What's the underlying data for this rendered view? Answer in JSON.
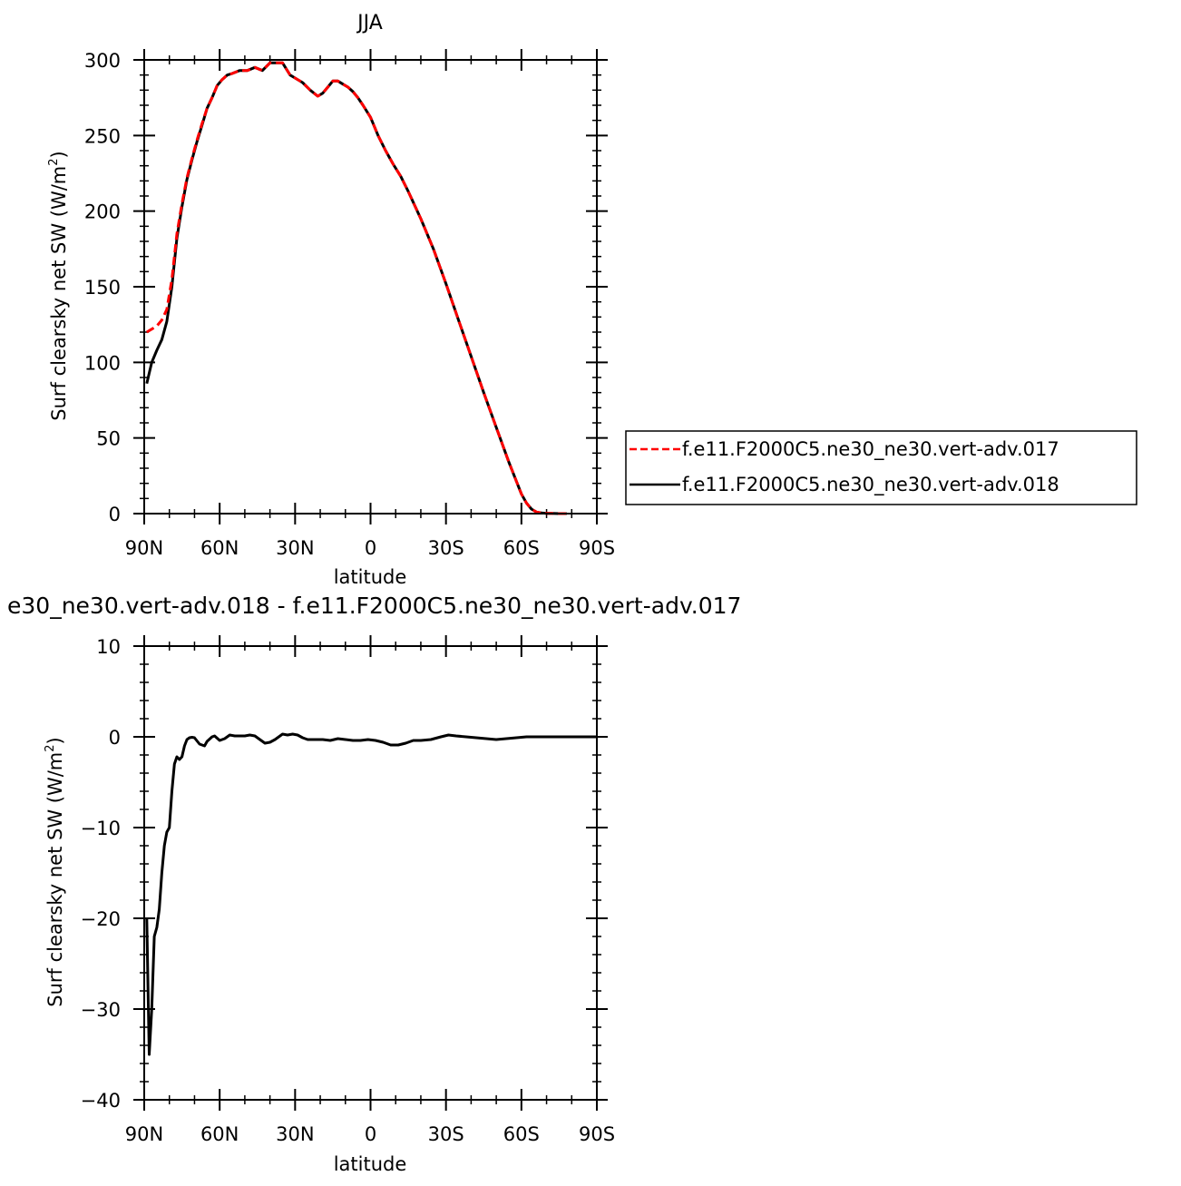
{
  "chart_data": [
    {
      "type": "line",
      "title": "JJA",
      "xlabel": "latitude",
      "ylabel_main": "Surf clearsky net SW (W/m",
      "ylabel_sup": "2",
      "ylabel_end": ")",
      "xlim": [
        90,
        -90
      ],
      "ylim": [
        0,
        300
      ],
      "x_ticks": [
        90,
        60,
        30,
        0,
        -30,
        -60,
        -90
      ],
      "x_tick_labels": [
        "90N",
        "60N",
        "30N",
        "0",
        "30S",
        "60S",
        "90S"
      ],
      "y_ticks": [
        0,
        50,
        100,
        150,
        200,
        250,
        300
      ],
      "y_tick_labels": [
        "0",
        "50",
        "100",
        "150",
        "200",
        "250",
        "300"
      ],
      "legend": "right",
      "series": [
        {
          "name": "f.e11.F2000C5.ne30_ne30.vert-adv.017",
          "color": "#ff0000",
          "dash": "dashed",
          "x": [
            89,
            87,
            85,
            83,
            81,
            79,
            77,
            75,
            73,
            71,
            69,
            67,
            65,
            63,
            61,
            59,
            57,
            55,
            52,
            49,
            46,
            43,
            40,
            38,
            35,
            32,
            30,
            27,
            24,
            21,
            19,
            17,
            15,
            13,
            11,
            9,
            7,
            5,
            3,
            0,
            -3,
            -6,
            -9,
            -12,
            -15,
            -20,
            -25,
            -30,
            -35,
            -40,
            -45,
            -50,
            -55,
            -60,
            -62,
            -64,
            -66,
            -68,
            -70,
            -72,
            -75,
            -78
          ],
          "y": [
            120,
            122,
            124,
            128,
            135,
            155,
            185,
            205,
            222,
            235,
            247,
            258,
            268,
            275,
            283,
            287,
            290,
            291,
            293,
            293,
            295,
            293,
            298,
            298,
            298,
            290,
            288,
            285,
            280,
            276,
            278,
            282,
            286,
            286,
            284,
            282,
            279,
            275,
            270,
            262,
            250,
            240,
            231,
            223,
            213,
            195,
            175,
            152,
            128,
            104,
            80,
            57,
            34,
            13,
            7,
            3,
            1,
            0.5,
            0.2,
            0.1,
            0,
            0
          ]
        },
        {
          "name": "f.e11.F2000C5.ne30_ne30.vert-adv.018",
          "color": "#000000",
          "dash": "solid",
          "x": [
            89,
            87,
            85,
            83,
            81,
            79,
            77,
            75,
            73,
            71,
            69,
            67,
            65,
            63,
            61,
            59,
            57,
            55,
            52,
            49,
            46,
            43,
            40,
            38,
            35,
            32,
            30,
            27,
            24,
            21,
            19,
            17,
            15,
            13,
            11,
            9,
            7,
            5,
            3,
            0,
            -3,
            -6,
            -9,
            -12,
            -15,
            -20,
            -25,
            -30,
            -35,
            -40,
            -45,
            -50,
            -55,
            -60,
            -62,
            -64,
            -66,
            -68,
            -70,
            -72,
            -75,
            -78
          ],
          "y": [
            86,
            100,
            108,
            115,
            127,
            150,
            182,
            203,
            221,
            234,
            246,
            257,
            268,
            275,
            283,
            287,
            290,
            291,
            293,
            293,
            295,
            293,
            298,
            298,
            298,
            290,
            288,
            285,
            280,
            276,
            278,
            282,
            286,
            286,
            284,
            282,
            279,
            275,
            270,
            262,
            250,
            240,
            231,
            223,
            213,
            195,
            175,
            152,
            128,
            104,
            80,
            57,
            34,
            13,
            7,
            3,
            1,
            0.5,
            0.2,
            0.1,
            0,
            0
          ]
        }
      ]
    },
    {
      "type": "line",
      "title": "e30_ne30.vert-adv.018 - f.e11.F2000C5.ne30_ne30.vert-adv.017",
      "xlabel": "latitude",
      "ylabel_main": "Surf clearsky net SW (W/m",
      "ylabel_sup": "2",
      "ylabel_end": ")",
      "xlim": [
        90,
        -90
      ],
      "ylim": [
        -40,
        10
      ],
      "x_ticks": [
        90,
        60,
        30,
        0,
        -30,
        -60,
        -90
      ],
      "x_tick_labels": [
        "90N",
        "60N",
        "30N",
        "0",
        "30S",
        "60S",
        "90S"
      ],
      "y_ticks": [
        -40,
        -30,
        -20,
        -10,
        0,
        10
      ],
      "y_tick_labels": [
        "−40",
        "−30",
        "−20",
        "−10",
        "0",
        "10"
      ],
      "series": [
        {
          "color": "#000000",
          "dash": "solid",
          "x": [
            89,
            88,
            87,
            86,
            85,
            84,
            83,
            82,
            81,
            80,
            79,
            78,
            77,
            76,
            75,
            74,
            73,
            72,
            71,
            70,
            68,
            66,
            65,
            63,
            62,
            60,
            58,
            56,
            54,
            52,
            50,
            48,
            46,
            44,
            42,
            40,
            38,
            35,
            33,
            31,
            29,
            27,
            25,
            22,
            19,
            16,
            13,
            10,
            7,
            4,
            1,
            -2,
            -5,
            -8,
            -11,
            -14,
            -17,
            -20,
            -24,
            -28,
            -31,
            -34,
            -38,
            -42,
            -46,
            -50,
            -54,
            -58,
            -62,
            -70,
            -80,
            -90
          ],
          "y": [
            -20,
            -35,
            -30,
            -22,
            -21,
            -19,
            -15,
            -12,
            -10.5,
            -10,
            -6,
            -3,
            -2.2,
            -2.5,
            -2.2,
            -1,
            -0.3,
            -0.1,
            -0.05,
            -0.1,
            -0.8,
            -1,
            -0.5,
            0,
            0.1,
            -0.4,
            -0.2,
            0.2,
            0.1,
            0.1,
            0.1,
            0.2,
            0.1,
            -0.3,
            -0.7,
            -0.6,
            -0.3,
            0.3,
            0.2,
            0.3,
            0.2,
            -0.1,
            -0.3,
            -0.3,
            -0.3,
            -0.4,
            -0.2,
            -0.3,
            -0.4,
            -0.4,
            -0.3,
            -0.4,
            -0.6,
            -0.9,
            -0.9,
            -0.7,
            -0.4,
            -0.4,
            -0.3,
            0,
            0.2,
            0.1,
            0,
            -0.1,
            -0.2,
            -0.3,
            -0.2,
            -0.1,
            0,
            0,
            0,
            0
          ]
        }
      ]
    }
  ]
}
